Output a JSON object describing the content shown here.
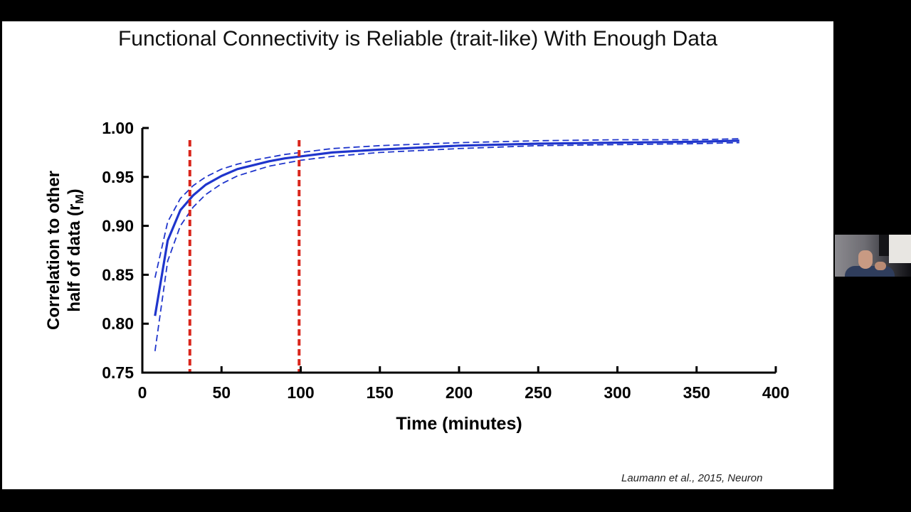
{
  "slide": {
    "title": "Functional Connectivity is Reliable (trait-like) With Enough Data",
    "citation": "Laumann et al., 2015, Neuron"
  },
  "chart_data": {
    "type": "line",
    "title": "Functional Connectivity is Reliable (trait-like) With Enough Data",
    "xlabel": "Time (minutes)",
    "ylabel_line1": "Correlation to other",
    "ylabel_line2": "half of data (r",
    "ylabel_sub": "M",
    "ylabel_close": ")",
    "xlim": [
      0,
      400
    ],
    "ylim": [
      0.75,
      1.0
    ],
    "x_ticks": [
      0,
      50,
      100,
      150,
      200,
      250,
      300,
      350,
      400
    ],
    "x_tick_labels": [
      "0",
      "50",
      "100",
      "150",
      "200",
      "250",
      "300",
      "350",
      "400"
    ],
    "y_ticks": [
      0.75,
      0.8,
      0.85,
      0.9,
      0.95,
      1.0
    ],
    "y_tick_labels": [
      "0.75",
      "0.80",
      "0.85",
      "0.90",
      "0.95",
      "1.00"
    ],
    "grid": false,
    "colors": {
      "series": "#1f35cc",
      "vline": "#d9261c",
      "axis": "#000000"
    },
    "series": [
      {
        "style": "solid",
        "x": [
          8,
          16,
          24,
          32,
          40,
          50,
          60,
          70,
          80,
          90,
          100,
          120,
          150,
          200,
          250,
          300,
          350,
          377
        ],
        "y": [
          0.808,
          0.885,
          0.916,
          0.931,
          0.942,
          0.951,
          0.958,
          0.962,
          0.966,
          0.969,
          0.971,
          0.975,
          0.978,
          0.982,
          0.984,
          0.985,
          0.986,
          0.987
        ]
      },
      {
        "style": "dashed",
        "x": [
          8,
          16,
          24,
          32,
          40,
          50,
          60,
          70,
          80,
          90,
          100,
          120,
          150,
          200,
          250,
          300,
          350,
          377
        ],
        "y": [
          0.847,
          0.904,
          0.928,
          0.941,
          0.95,
          0.958,
          0.963,
          0.967,
          0.97,
          0.973,
          0.975,
          0.979,
          0.982,
          0.985,
          0.987,
          0.988,
          0.988,
          0.989
        ]
      },
      {
        "style": "dashed",
        "x": [
          8,
          16,
          24,
          32,
          40,
          50,
          60,
          70,
          80,
          90,
          100,
          120,
          150,
          200,
          250,
          300,
          350,
          377
        ],
        "y": [
          0.772,
          0.864,
          0.9,
          0.919,
          0.932,
          0.943,
          0.951,
          0.956,
          0.961,
          0.964,
          0.967,
          0.971,
          0.975,
          0.979,
          0.982,
          0.983,
          0.984,
          0.985
        ]
      }
    ],
    "vlines": [
      30,
      99
    ]
  }
}
